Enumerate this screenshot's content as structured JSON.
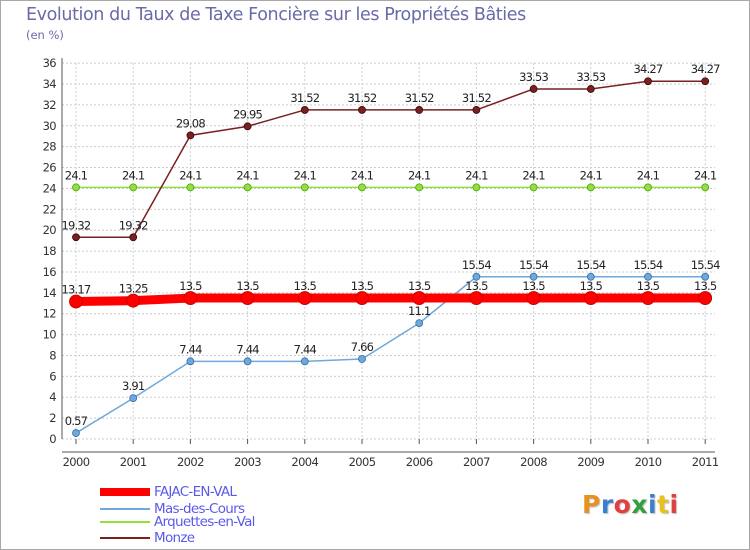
{
  "header": {
    "title": "Evolution du Taux de Taxe Foncière sur les Propriétés Bâties",
    "unit": "(en %)"
  },
  "chart_data": {
    "type": "line",
    "title": "Evolution du Taux de Taxe Foncière sur les Propriétés Bâties",
    "ylabel": "(en %)",
    "xlabel": "",
    "ylim": [
      0,
      36
    ],
    "yticks": [
      0,
      2,
      4,
      6,
      8,
      10,
      12,
      14,
      16,
      18,
      20,
      22,
      24,
      26,
      28,
      30,
      32,
      34,
      36
    ],
    "grid": true,
    "categories": [
      "2000",
      "2001",
      "2002",
      "2003",
      "2004",
      "2005",
      "2006",
      "2007",
      "2008",
      "2009",
      "2010",
      "2011"
    ],
    "series": [
      {
        "name": "FAJAC-EN-VAL",
        "color": "#ff0000",
        "values": [
          13.17,
          13.25,
          13.5,
          13.5,
          13.5,
          13.5,
          13.5,
          13.5,
          13.5,
          13.5,
          13.5,
          13.5
        ],
        "labels": [
          "13.17",
          "13.25",
          "13.5",
          "13.5",
          "13.5",
          "13.5",
          "13.5",
          "13.5",
          "13.5",
          "13.5",
          "13.5",
          "13.5"
        ]
      },
      {
        "name": "Mas-des-Cours",
        "color": "#6fa8dc",
        "values": [
          0.57,
          3.91,
          7.44,
          7.44,
          7.44,
          7.66,
          11.1,
          15.54,
          15.54,
          15.54,
          15.54,
          15.54
        ],
        "labels": [
          "0.57",
          "3.91",
          "7.44",
          "7.44",
          "7.44",
          "7.66",
          "11.1",
          "15.54",
          "15.54",
          "15.54",
          "15.54",
          "15.54"
        ]
      },
      {
        "name": "Arquettes-en-Val",
        "color": "#90e040",
        "values": [
          24.1,
          24.1,
          24.1,
          24.1,
          24.1,
          24.1,
          24.1,
          24.1,
          24.1,
          24.1,
          24.1,
          24.1
        ],
        "labels": [
          "24.1",
          "24.1",
          "24.1",
          "24.1",
          "24.1",
          "24.1",
          "24.1",
          "24.1",
          "24.1",
          "24.1",
          "24.1",
          "24.1"
        ]
      },
      {
        "name": "Monze",
        "color": "#7a2020",
        "values": [
          19.32,
          19.32,
          29.08,
          29.95,
          31.52,
          31.52,
          31.52,
          31.52,
          33.53,
          33.53,
          34.27,
          34.27
        ],
        "labels": [
          "19.32",
          "19.32",
          "29.08",
          "29.95",
          "31.52",
          "31.52",
          "31.52",
          "31.52",
          "33.53",
          "33.53",
          "34.27",
          "34.27"
        ]
      }
    ]
  },
  "legend": {
    "items": [
      {
        "label": "FAJAC-EN-VAL",
        "color": "#ff0000"
      },
      {
        "label": "Mas-des-Cours",
        "color": "#6fa8dc"
      },
      {
        "label": "Arquettes-en-Val",
        "color": "#90e040"
      },
      {
        "label": "Monze",
        "color": "#7a2020"
      }
    ]
  },
  "logo": {
    "text": "Proxiti",
    "letter_colors": [
      "#e89020",
      "#3a7fd0",
      "#e04040",
      "#30a040",
      "#3a7fd0",
      "#e8c020",
      "#e04040"
    ]
  }
}
